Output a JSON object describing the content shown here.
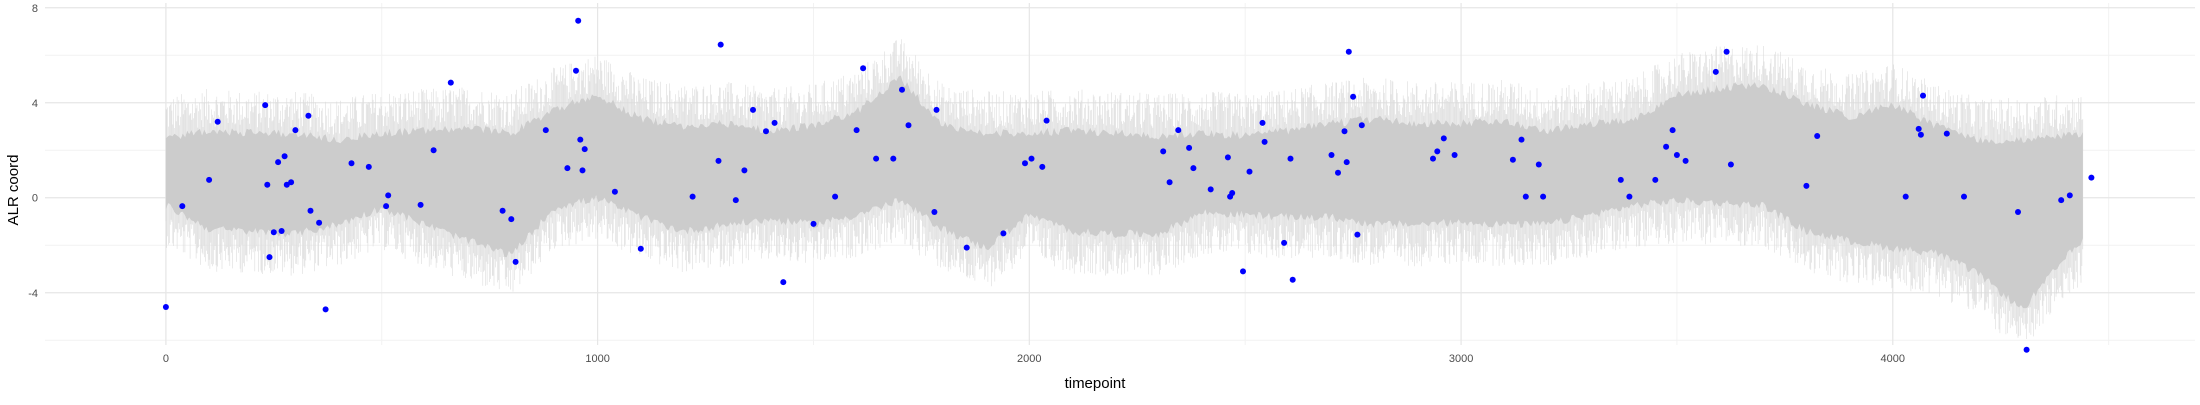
{
  "chart_data": {
    "type": "scatter",
    "title": "",
    "xlabel": "timepoint",
    "ylabel": "ALR coord",
    "xlim": [
      -280,
      4700
    ],
    "ylim": [
      -6.2,
      8.2
    ],
    "x_ticks": [
      0,
      1000,
      2000,
      3000,
      4000
    ],
    "x_tick_labels": [
      "0",
      "1000",
      "2000",
      "3000",
      "4000"
    ],
    "y_ticks": [
      -4,
      0,
      4,
      8
    ],
    "y_tick_labels": [
      "-4",
      "0",
      "4",
      "8"
    ],
    "grid": true,
    "background": "#ffffff",
    "ribbon": {
      "color": "#cccccc",
      "x": [
        0,
        100,
        200,
        300,
        400,
        500,
        600,
        700,
        800,
        900,
        1000,
        1100,
        1200,
        1300,
        1400,
        1500,
        1600,
        1700,
        1800,
        1900,
        2000,
        2100,
        2200,
        2300,
        2400,
        2500,
        2600,
        2700,
        2800,
        2900,
        3000,
        3100,
        3200,
        3300,
        3400,
        3500,
        3600,
        3700,
        3800,
        3900,
        4000,
        4100,
        4200,
        4300,
        4400,
        4440
      ],
      "upper": [
        2.7,
        3.0,
        2.9,
        2.9,
        2.6,
        2.9,
        3.0,
        3.1,
        2.9,
        3.9,
        4.5,
        3.5,
        3.2,
        3.3,
        3.0,
        3.2,
        3.8,
        5.2,
        3.2,
        2.9,
        2.9,
        3.0,
        2.9,
        2.8,
        2.9,
        2.8,
        3.0,
        3.3,
        3.5,
        3.3,
        3.3,
        3.4,
        3.0,
        3.3,
        3.5,
        4.5,
        4.8,
        4.9,
        4.1,
        3.6,
        4.1,
        3.2,
        2.6,
        2.6,
        2.8,
        2.8
      ],
      "lower": [
        -0.5,
        -1.5,
        -1.6,
        -1.7,
        -1.3,
        -0.6,
        -1.3,
        -2.0,
        -2.6,
        -0.6,
        -0.2,
        -1.0,
        -1.6,
        -1.3,
        -1.1,
        -1.3,
        -0.9,
        -0.3,
        -1.5,
        -2.3,
        -0.9,
        -1.6,
        -1.7,
        -1.7,
        -0.8,
        -0.9,
        -1.0,
        -1.0,
        -1.3,
        -1.3,
        -1.2,
        -1.3,
        -1.3,
        -0.9,
        -0.5,
        -0.3,
        -0.4,
        -0.5,
        -1.6,
        -2.0,
        -2.3,
        -2.5,
        -3.4,
        -4.9,
        -2.7,
        -2.0
      ]
    },
    "series": [
      {
        "color": "#0000ff",
        "points": [
          [
            0,
            -4.6
          ],
          [
            38,
            -0.35
          ],
          [
            100,
            0.75
          ],
          [
            120,
            3.2
          ],
          [
            230,
            3.9
          ],
          [
            235,
            0.55
          ],
          [
            240,
            -2.5
          ],
          [
            250,
            -1.45
          ],
          [
            260,
            1.5
          ],
          [
            268,
            -1.4
          ],
          [
            275,
            1.75
          ],
          [
            280,
            0.55
          ],
          [
            290,
            0.65
          ],
          [
            300,
            2.85
          ],
          [
            330,
            3.45
          ],
          [
            335,
            -0.55
          ],
          [
            355,
            -1.05
          ],
          [
            370,
            -4.7
          ],
          [
            430,
            1.45
          ],
          [
            470,
            1.3
          ],
          [
            510,
            -0.35
          ],
          [
            515,
            0.1
          ],
          [
            590,
            -0.3
          ],
          [
            620,
            2.0
          ],
          [
            660,
            4.85
          ],
          [
            780,
            -0.55
          ],
          [
            800,
            -0.9
          ],
          [
            810,
            -2.7
          ],
          [
            880,
            2.85
          ],
          [
            930,
            1.25
          ],
          [
            950,
            5.35
          ],
          [
            955,
            7.45
          ],
          [
            960,
            2.45
          ],
          [
            965,
            1.15
          ],
          [
            970,
            2.05
          ],
          [
            1040,
            0.25
          ],
          [
            1100,
            -2.15
          ],
          [
            1220,
            0.05
          ],
          [
            1280,
            1.55
          ],
          [
            1285,
            6.45
          ],
          [
            1320,
            -0.1
          ],
          [
            1340,
            1.15
          ],
          [
            1360,
            3.7
          ],
          [
            1390,
            2.8
          ],
          [
            1410,
            3.15
          ],
          [
            1430,
            -3.55
          ],
          [
            1500,
            -1.1
          ],
          [
            1550,
            0.05
          ],
          [
            1600,
            2.85
          ],
          [
            1615,
            5.45
          ],
          [
            1645,
            1.65
          ],
          [
            1685,
            1.65
          ],
          [
            1705,
            4.55
          ],
          [
            1720,
            3.05
          ],
          [
            1780,
            -0.6
          ],
          [
            1785,
            3.7
          ],
          [
            1855,
            -2.1
          ],
          [
            1940,
            -1.5
          ],
          [
            1990,
            1.45
          ],
          [
            2005,
            1.65
          ],
          [
            2030,
            1.3
          ],
          [
            2040,
            3.25
          ],
          [
            2310,
            1.95
          ],
          [
            2325,
            0.65
          ],
          [
            2345,
            2.85
          ],
          [
            2370,
            2.1
          ],
          [
            2380,
            1.25
          ],
          [
            2420,
            0.35
          ],
          [
            2460,
            1.7
          ],
          [
            2465,
            0.05
          ],
          [
            2470,
            0.2
          ],
          [
            2495,
            -3.1
          ],
          [
            2510,
            1.1
          ],
          [
            2540,
            3.15
          ],
          [
            2545,
            2.35
          ],
          [
            2590,
            -1.9
          ],
          [
            2605,
            1.65
          ],
          [
            2610,
            -3.45
          ],
          [
            2700,
            1.8
          ],
          [
            2715,
            1.05
          ],
          [
            2730,
            2.8
          ],
          [
            2735,
            1.5
          ],
          [
            2740,
            6.15
          ],
          [
            2750,
            4.25
          ],
          [
            2760,
            -1.55
          ],
          [
            2770,
            3.05
          ],
          [
            2935,
            1.65
          ],
          [
            2945,
            1.95
          ],
          [
            2960,
            2.5
          ],
          [
            2985,
            1.8
          ],
          [
            3120,
            1.6
          ],
          [
            3140,
            2.45
          ],
          [
            3150,
            0.05
          ],
          [
            3180,
            1.4
          ],
          [
            3190,
            0.05
          ],
          [
            3370,
            0.75
          ],
          [
            3390,
            0.05
          ],
          [
            3450,
            0.75
          ],
          [
            3475,
            2.15
          ],
          [
            3490,
            2.85
          ],
          [
            3500,
            1.8
          ],
          [
            3520,
            1.55
          ],
          [
            3590,
            5.3
          ],
          [
            3615,
            6.15
          ],
          [
            3625,
            1.4
          ],
          [
            3800,
            0.5
          ],
          [
            3825,
            2.6
          ],
          [
            4030,
            0.05
          ],
          [
            4060,
            2.9
          ],
          [
            4065,
            2.65
          ],
          [
            4070,
            4.3
          ],
          [
            4125,
            2.7
          ],
          [
            4165,
            0.05
          ],
          [
            4290,
            -0.6
          ],
          [
            4310,
            -6.4
          ],
          [
            4390,
            -0.1
          ],
          [
            4410,
            0.1
          ],
          [
            4460,
            0.85
          ]
        ]
      }
    ]
  }
}
